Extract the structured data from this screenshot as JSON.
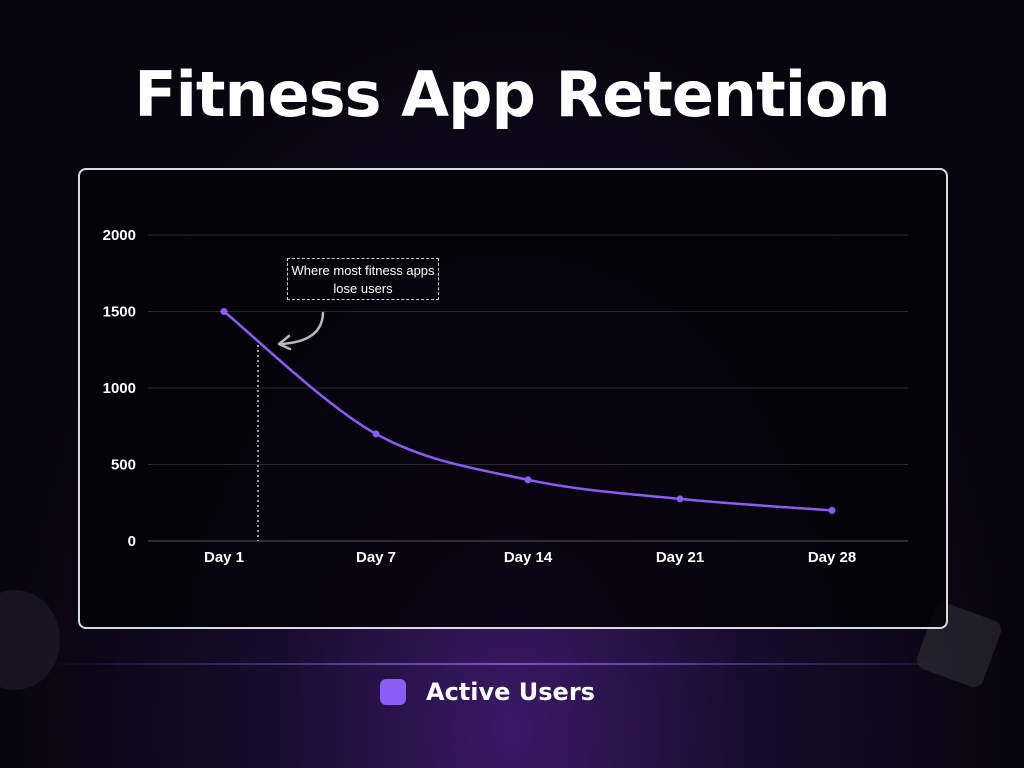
{
  "title": "Fitness App Retention",
  "annotation": "Where most fitness apps lose users",
  "colors": {
    "series": "#8b5cf6",
    "grid": "#2a2a30",
    "annotation_line": "#cfcfd6"
  },
  "chart_data": {
    "type": "line",
    "title": "Fitness App Retention",
    "categories": [
      "Day 1",
      "Day 7",
      "Day 14",
      "Day 21",
      "Day 28"
    ],
    "series": [
      {
        "name": "Active Users",
        "values": [
          1500,
          700,
          400,
          275,
          200
        ]
      }
    ],
    "ylim": [
      0,
      2000
    ],
    "yticks": [
      0,
      500,
      1000,
      1500,
      2000
    ],
    "grid": true,
    "legend": "bottom-center",
    "annotations": [
      {
        "text": "Where most fitness apps lose users",
        "marker": "dotted vertical line after Day 1"
      }
    ]
  }
}
